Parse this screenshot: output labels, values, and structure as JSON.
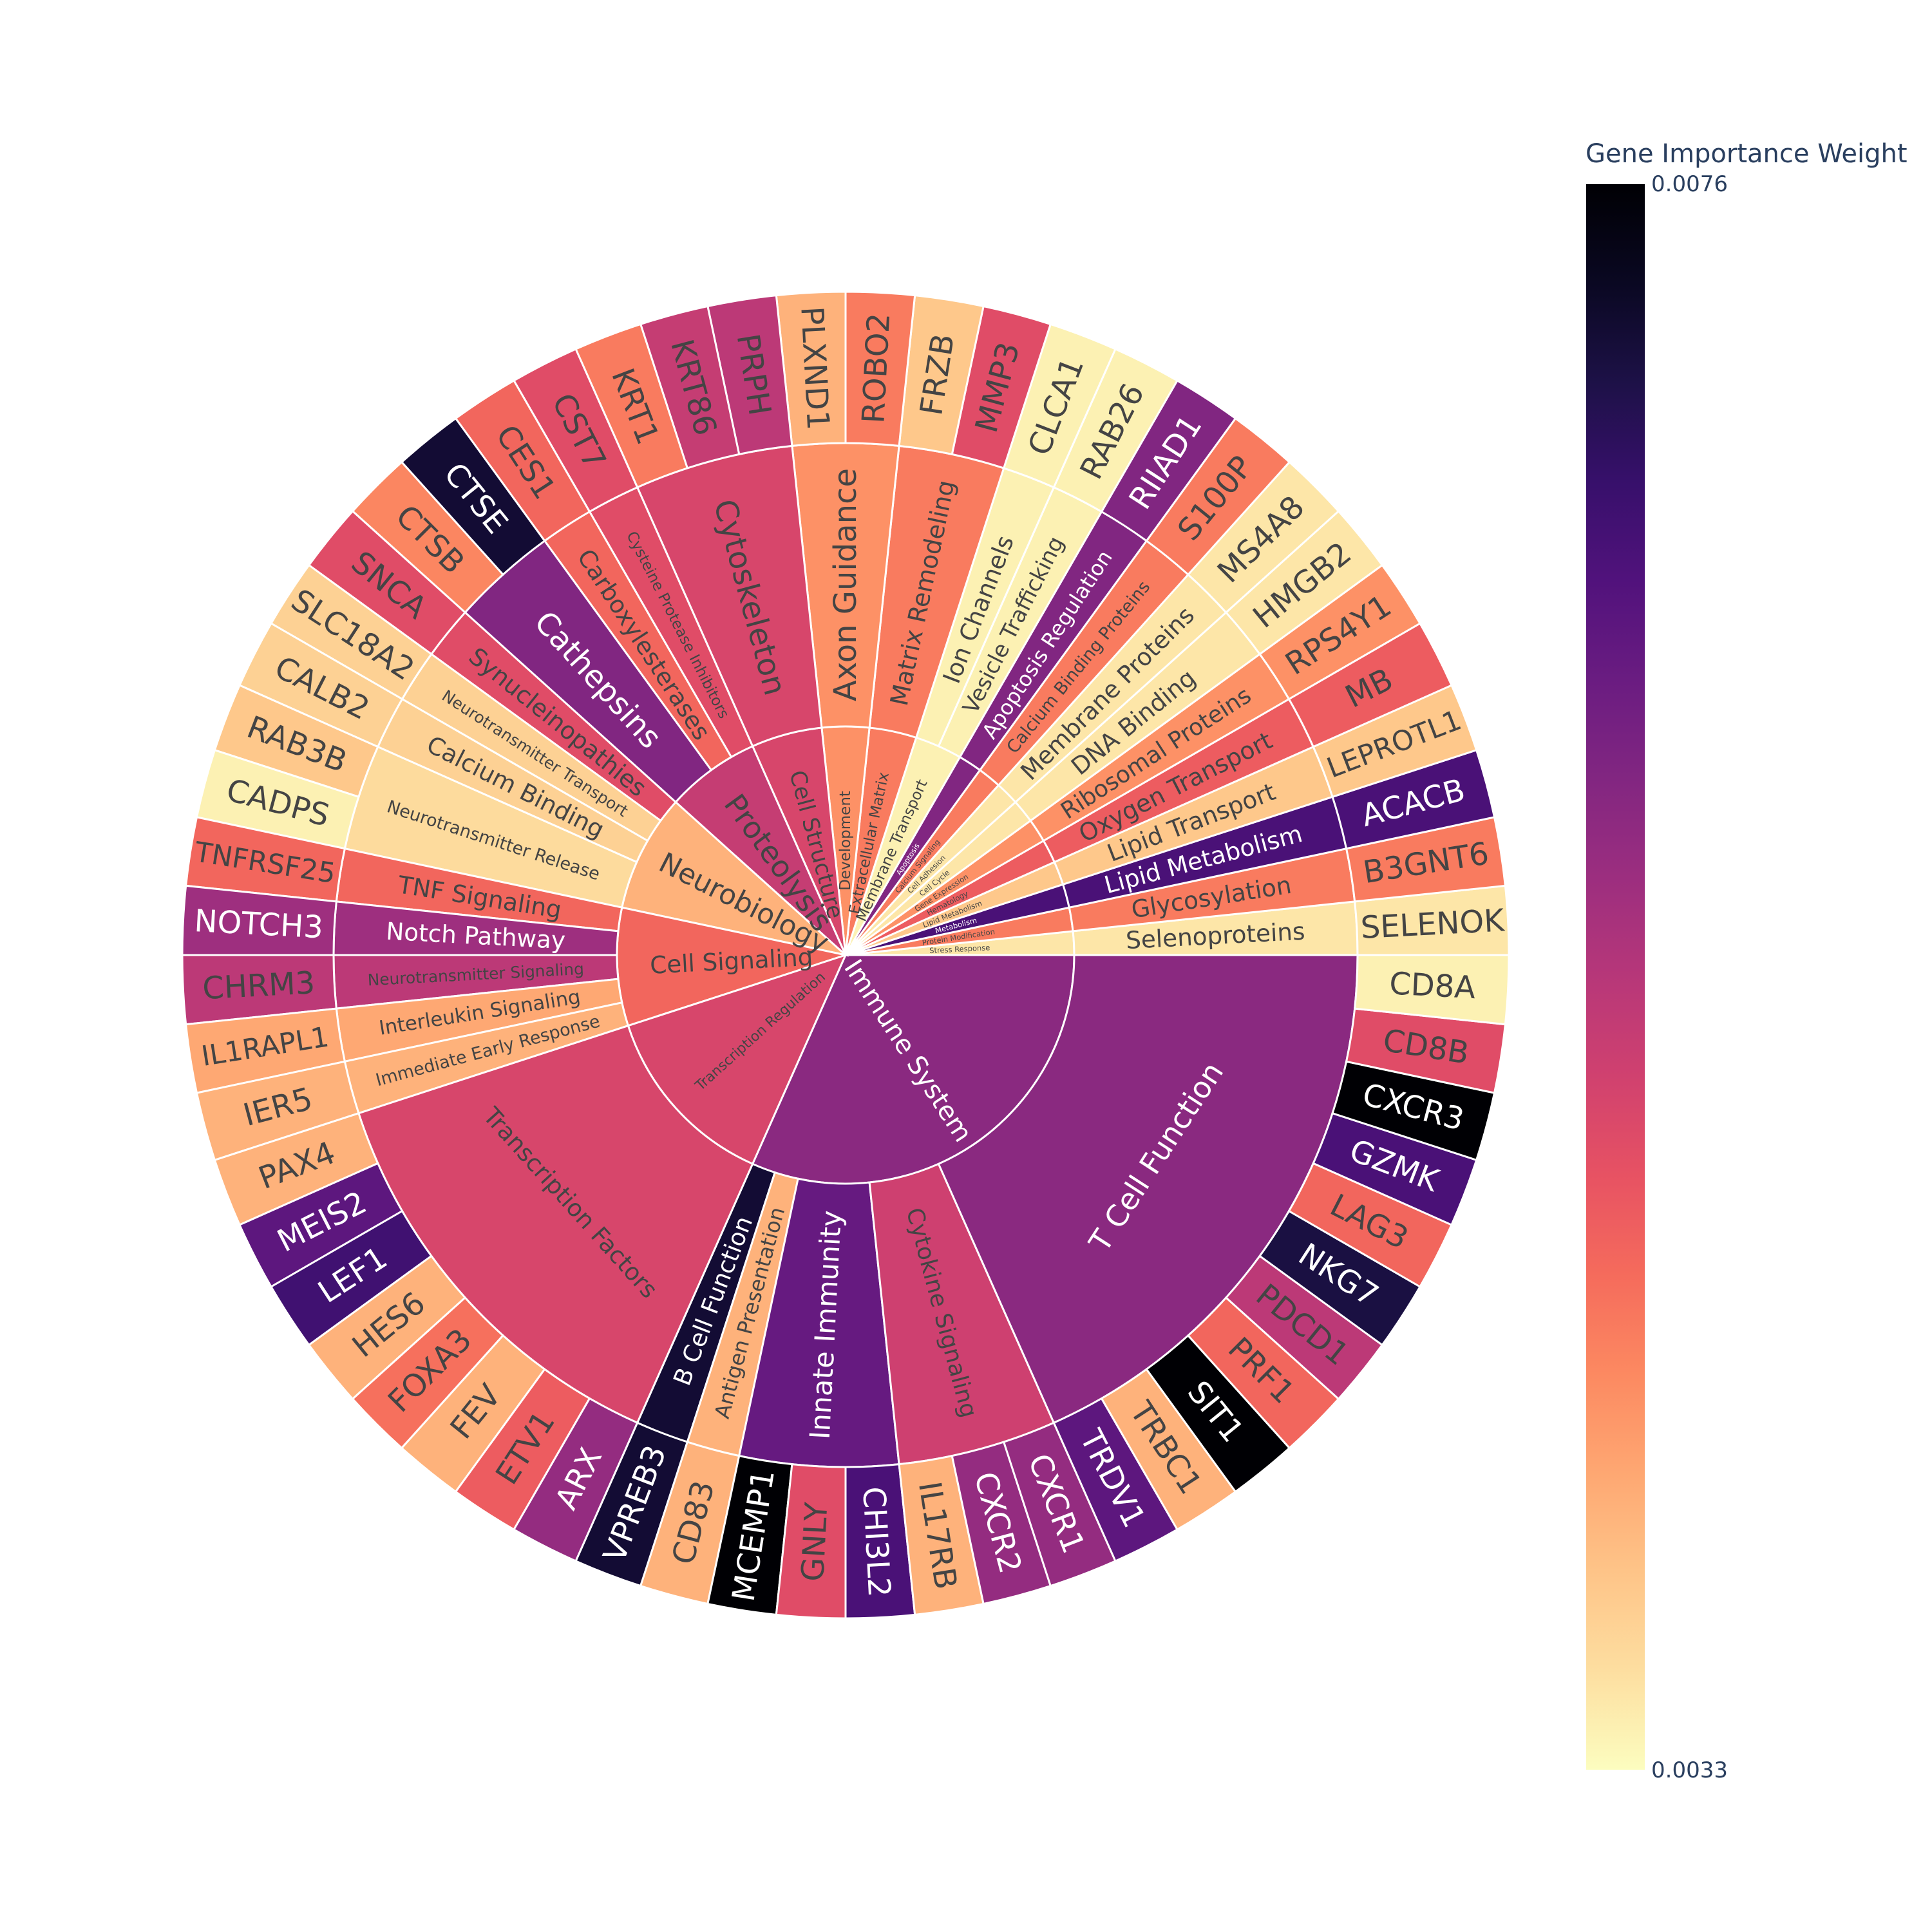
{
  "chart_data": {
    "type": "sunburst",
    "colorbar": {
      "title": "Gene Importance Weight",
      "max_label": "0.0076",
      "min_label": "0.0033",
      "min": 0.0033,
      "max": 0.0076
    },
    "colorscale": [
      "#fcfdbf",
      "#fddea0",
      "#fec488",
      "#fea772",
      "#fc8961",
      "#f56b5c",
      "#e75263",
      "#d0416f",
      "#b73779",
      "#9c2e7f",
      "#822681",
      "#6a1c81",
      "#51127c",
      "#37106b",
      "#1d1147",
      "#0a0822",
      "#000004"
    ],
    "children": [
      {
        "label": "Immune System",
        "value": 0.0059,
        "children": [
          {
            "label": "B Cell Function",
            "value": 0.0072,
            "children": [
              {
                "label": "VPREB3",
                "value": 0.0072
              }
            ]
          },
          {
            "label": "Antigen Presentation",
            "value": 0.004,
            "children": [
              {
                "label": "CD83",
                "value": 0.004
              }
            ]
          },
          {
            "label": "Innate Immunity",
            "value": 0.0063,
            "children": [
              {
                "label": "MCEMP1",
                "value": 0.0076
              },
              {
                "label": "GNLY",
                "value": 0.005
              },
              {
                "label": "CHI3L2",
                "value": 0.0066
              }
            ]
          },
          {
            "label": "Cytokine Signaling",
            "value": 0.0052,
            "children": [
              {
                "label": "IL17RB",
                "value": 0.004
              },
              {
                "label": "CXCR2",
                "value": 0.0058
              },
              {
                "label": "CXCR1",
                "value": 0.0058
              }
            ]
          },
          {
            "label": "T Cell Function",
            "value": 0.0059,
            "children": [
              {
                "label": "TRDV1",
                "value": 0.0064
              },
              {
                "label": "TRBC1",
                "value": 0.004
              },
              {
                "label": "SIT1",
                "value": 0.0076
              },
              {
                "label": "PRF1",
                "value": 0.0047
              },
              {
                "label": "PDCD1",
                "value": 0.0054
              },
              {
                "label": "NKG7",
                "value": 0.0071
              },
              {
                "label": "LAG3",
                "value": 0.0047
              },
              {
                "label": "GZMK",
                "value": 0.0066
              },
              {
                "label": "CXCR3",
                "value": 0.0076
              },
              {
                "label": "CD8B",
                "value": 0.005
              },
              {
                "label": "CD8A",
                "value": 0.0034
              }
            ]
          }
        ]
      },
      {
        "label": "Stress Response",
        "value": 0.0035,
        "children": [
          {
            "label": "Selenoproteins",
            "value": 0.0035,
            "children": [
              {
                "label": "SELENOK",
                "value": 0.0035
              }
            ]
          }
        ]
      },
      {
        "label": "Protein Modification",
        "value": 0.0045,
        "children": [
          {
            "label": "Glycosylation",
            "value": 0.0045,
            "children": [
              {
                "label": "B3GNT6",
                "value": 0.0045
              }
            ]
          }
        ]
      },
      {
        "label": "Metabolism",
        "value": 0.0066,
        "children": [
          {
            "label": "Lipid Metabolism",
            "value": 0.0066,
            "children": [
              {
                "label": "ACACB",
                "value": 0.0066
              }
            ]
          }
        ]
      },
      {
        "label": "Lipid Metabolism",
        "value": 0.0038,
        "children": [
          {
            "label": "Lipid Transport",
            "value": 0.0038,
            "children": [
              {
                "label": "LEPROTL1",
                "value": 0.0038
              }
            ]
          }
        ]
      },
      {
        "label": "Hematology",
        "value": 0.0048,
        "children": [
          {
            "label": "Oxygen Transport",
            "value": 0.0048,
            "children": [
              {
                "label": "MB",
                "value": 0.0048
              }
            ]
          }
        ]
      },
      {
        "label": "Gene Expression",
        "value": 0.0043,
        "children": [
          {
            "label": "Ribosomal Proteins",
            "value": 0.0043,
            "children": [
              {
                "label": "RPS4Y1",
                "value": 0.0043
              }
            ]
          }
        ]
      },
      {
        "label": "Cell Cycle",
        "value": 0.0035,
        "children": [
          {
            "label": "DNA Binding",
            "value": 0.0035,
            "children": [
              {
                "label": "HMGB2",
                "value": 0.0035
              }
            ]
          }
        ]
      },
      {
        "label": "Cell Adhesion",
        "value": 0.0035,
        "children": [
          {
            "label": "Membrane Proteins",
            "value": 0.0035,
            "children": [
              {
                "label": "MS4A8",
                "value": 0.0035
              }
            ]
          }
        ]
      },
      {
        "label": "Calcium Signaling",
        "value": 0.0045,
        "children": [
          {
            "label": "Calcium Binding Proteins",
            "value": 0.0045,
            "children": [
              {
                "label": "S100P",
                "value": 0.0045
              }
            ]
          }
        ]
      },
      {
        "label": "Apoptosis",
        "value": 0.006,
        "children": [
          {
            "label": "Apoptosis Regulation",
            "value": 0.006,
            "children": [
              {
                "label": "RIIAD1",
                "value": 0.006
              }
            ]
          }
        ]
      },
      {
        "label": "Membrane Transport",
        "value": 0.0034,
        "children": [
          {
            "label": "Vesicle Trafficking",
            "value": 0.0034,
            "children": [
              {
                "label": "RAB26",
                "value": 0.0034
              }
            ]
          },
          {
            "label": "Ion Channels",
            "value": 0.0034,
            "children": [
              {
                "label": "CLCA1",
                "value": 0.0034
              }
            ]
          }
        ]
      },
      {
        "label": "Extracellular Matrix",
        "value": 0.0045,
        "children": [
          {
            "label": "Matrix Remodeling",
            "value": 0.0045,
            "children": [
              {
                "label": "MMP3",
                "value": 0.005
              },
              {
                "label": "FRZB",
                "value": 0.0038
              }
            ]
          }
        ]
      },
      {
        "label": "Development",
        "value": 0.0043,
        "children": [
          {
            "label": "Axon Guidance",
            "value": 0.0043,
            "children": [
              {
                "label": "ROBO2",
                "value": 0.0045
              },
              {
                "label": "PLXND1",
                "value": 0.004
              }
            ]
          }
        ]
      },
      {
        "label": "Cell Structure",
        "value": 0.0051,
        "children": [
          {
            "label": "Cytoskeleton",
            "value": 0.0051,
            "children": [
              {
                "label": "PRPH",
                "value": 0.0054
              },
              {
                "label": "KRT86",
                "value": 0.0053
              },
              {
                "label": "KRT1",
                "value": 0.0045
              }
            ]
          }
        ]
      },
      {
        "label": "Proteolysis",
        "value": 0.0053,
        "children": [
          {
            "label": "Cysteine Protease Inhibitors",
            "value": 0.005,
            "children": [
              {
                "label": "CST7",
                "value": 0.005
              }
            ]
          },
          {
            "label": "Carboxylesterases",
            "value": 0.0047,
            "children": [
              {
                "label": "CES1",
                "value": 0.0047
              }
            ]
          },
          {
            "label": "Cathepsins",
            "value": 0.006,
            "children": [
              {
                "label": "CTSE",
                "value": 0.0072
              },
              {
                "label": "CTSB",
                "value": 0.0044
              }
            ]
          }
        ]
      },
      {
        "label": "Neurobiology",
        "value": 0.004,
        "children": [
          {
            "label": "Synucleinopathies",
            "value": 0.005,
            "children": [
              {
                "label": "SNCA",
                "value": 0.005
              }
            ]
          },
          {
            "label": "Neurotransmitter Transport",
            "value": 0.0037,
            "children": [
              {
                "label": "SLC18A2",
                "value": 0.0037
              }
            ]
          },
          {
            "label": "Calcium Binding",
            "value": 0.0037,
            "children": [
              {
                "label": "CALB2",
                "value": 0.0037
              }
            ]
          },
          {
            "label": "Neurotransmitter Release",
            "value": 0.0036,
            "children": [
              {
                "label": "RAB3B",
                "value": 0.0038
              },
              {
                "label": "CADPS",
                "value": 0.0034
              }
            ]
          }
        ]
      },
      {
        "label": "Cell Signaling",
        "value": 0.0047,
        "children": [
          {
            "label": "TNF Signaling",
            "value": 0.0047,
            "children": [
              {
                "label": "TNFRSF25",
                "value": 0.0047
              }
            ]
          },
          {
            "label": "Notch Pathway",
            "value": 0.0057,
            "children": [
              {
                "label": "NOTCH3",
                "value": 0.0057
              }
            ]
          },
          {
            "label": "Neurotransmitter Signaling",
            "value": 0.0054,
            "children": [
              {
                "label": "CHRM3",
                "value": 0.0054
              }
            ]
          },
          {
            "label": "Interleukin Signaling",
            "value": 0.0041,
            "children": [
              {
                "label": "IL1RAPL1",
                "value": 0.0041
              }
            ]
          },
          {
            "label": "Immediate Early Response",
            "value": 0.004,
            "children": [
              {
                "label": "IER5",
                "value": 0.004
              }
            ]
          }
        ]
      },
      {
        "label": "Transcription Regulation",
        "value": 0.0051,
        "children": [
          {
            "label": "Transcription Factors",
            "value": 0.0051,
            "children": [
              {
                "label": "PAX4",
                "value": 0.004
              },
              {
                "label": "MEIS2",
                "value": 0.0064
              },
              {
                "label": "LEF1",
                "value": 0.0067
              },
              {
                "label": "HES6",
                "value": 0.004
              },
              {
                "label": "FOXA3",
                "value": 0.0046
              },
              {
                "label": "FEV",
                "value": 0.004
              },
              {
                "label": "ETV1",
                "value": 0.0048
              },
              {
                "label": "ARX",
                "value": 0.0058
              }
            ]
          }
        ]
      }
    ]
  }
}
